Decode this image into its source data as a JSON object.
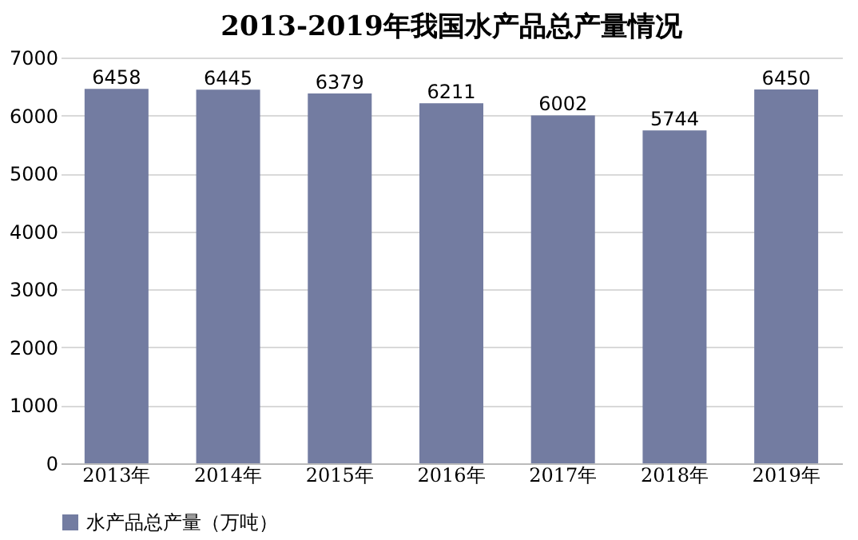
{
  "chart_data": {
    "type": "bar",
    "title": "2013-2019年我国水产品总产量情况",
    "categories": [
      "2013年",
      "2014年",
      "2015年",
      "2016年",
      "2017年",
      "2018年",
      "2019年"
    ],
    "series": [
      {
        "name": "水产品总产量（万吨）",
        "color": "#737ca1",
        "values": [
          6458,
          6445,
          6379,
          6211,
          6002,
          5744,
          6450
        ]
      }
    ],
    "ylim": [
      0,
      7000
    ],
    "yticks": [
      0,
      1000,
      2000,
      3000,
      4000,
      5000,
      6000,
      7000
    ],
    "grid": "y",
    "legend": "bottom",
    "data_labels": true
  }
}
